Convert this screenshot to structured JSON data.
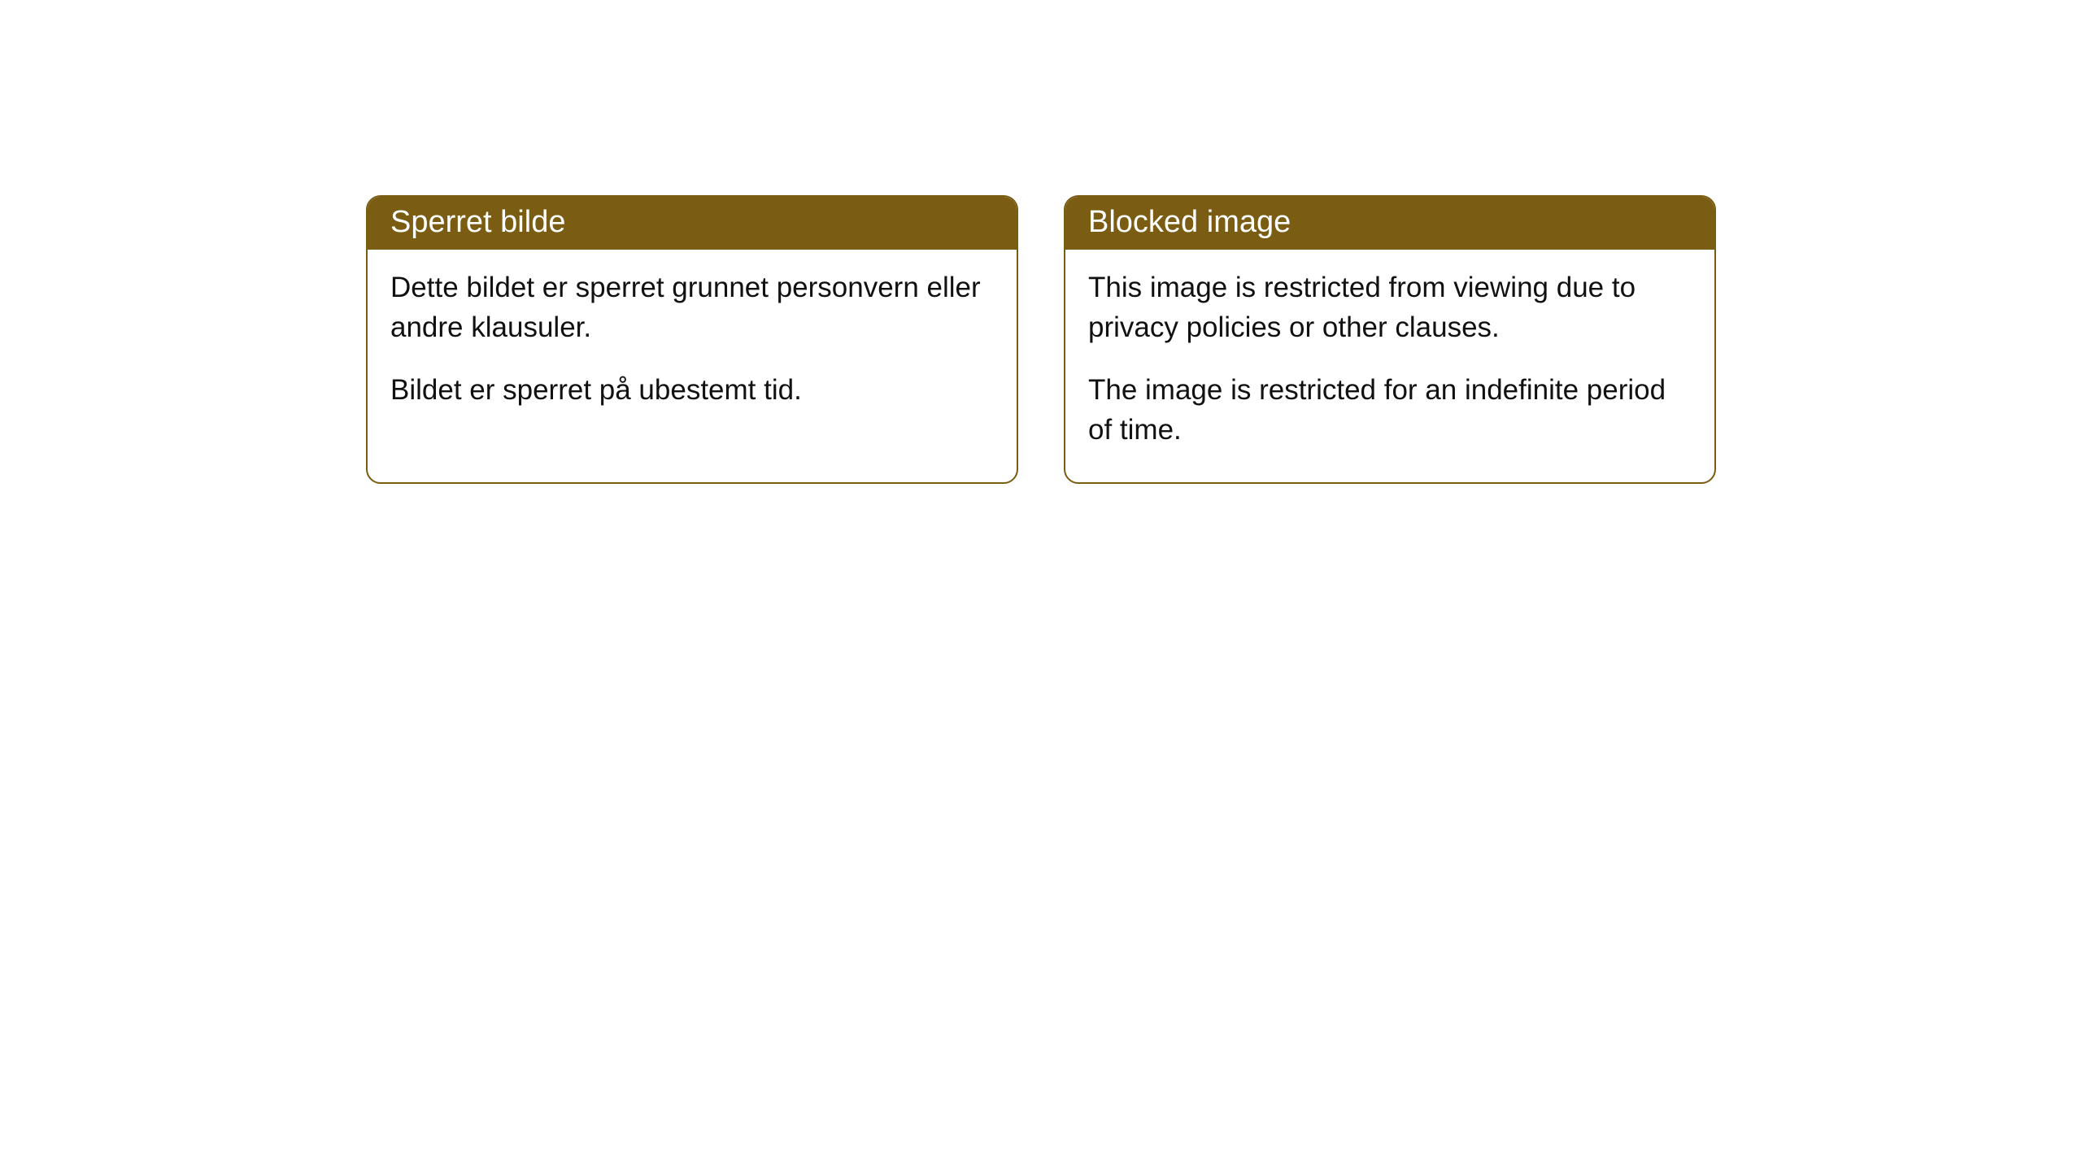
{
  "cards": [
    {
      "title": "Sperret bilde",
      "paragraph1": "Dette bildet er sperret grunnet personvern eller andre klausuler.",
      "paragraph2": "Bildet er sperret på ubestemt tid."
    },
    {
      "title": "Blocked image",
      "paragraph1": "This image is restricted from viewing due to privacy policies or other clauses.",
      "paragraph2": "The image is restricted for an indefinite period of time."
    }
  ],
  "styling": {
    "header_bg_color": "#7a5d13",
    "header_text_color": "#ffffff",
    "border_color": "#7a5d13",
    "body_bg_color": "#ffffff",
    "body_text_color": "#111111",
    "border_radius": 18,
    "header_fontsize": 38,
    "body_fontsize": 35
  }
}
